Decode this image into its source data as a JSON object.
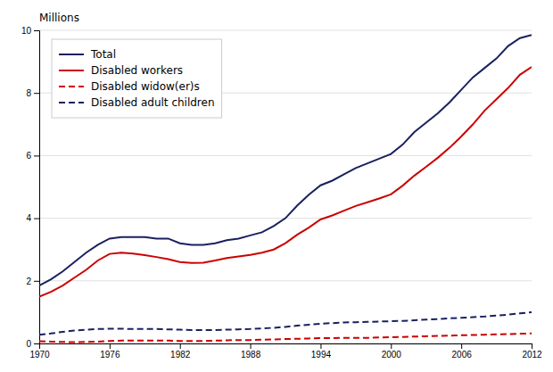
{
  "chart_data": {
    "type": "line",
    "ylabel": "Millions",
    "x": [
      1970,
      1971,
      1972,
      1973,
      1974,
      1975,
      1976,
      1977,
      1978,
      1979,
      1980,
      1981,
      1982,
      1983,
      1984,
      1985,
      1986,
      1987,
      1988,
      1989,
      1990,
      1991,
      1992,
      1993,
      1994,
      1995,
      1996,
      1997,
      1998,
      1999,
      2000,
      2001,
      2002,
      2003,
      2004,
      2005,
      2006,
      2007,
      2008,
      2009,
      2010,
      2011,
      2012
    ],
    "series": [
      {
        "name": "Total",
        "color": "#1a2060",
        "line_style": "solid",
        "values": [
          1.85,
          2.05,
          2.3,
          2.6,
          2.9,
          3.15,
          3.35,
          3.4,
          3.4,
          3.4,
          3.35,
          3.35,
          3.2,
          3.15,
          3.15,
          3.2,
          3.3,
          3.35,
          3.45,
          3.55,
          3.75,
          4.0,
          4.4,
          4.75,
          5.05,
          5.2,
          5.4,
          5.6,
          5.75,
          5.9,
          6.05,
          6.35,
          6.75,
          7.05,
          7.35,
          7.7,
          8.1,
          8.5,
          8.8,
          9.1,
          9.5,
          9.75,
          9.85
        ]
      },
      {
        "name": "Disabled workers",
        "color": "#cc0000",
        "line_style": "solid",
        "values": [
          1.49,
          1.65,
          1.85,
          2.1,
          2.35,
          2.65,
          2.86,
          2.9,
          2.87,
          2.82,
          2.76,
          2.69,
          2.6,
          2.57,
          2.58,
          2.65,
          2.73,
          2.78,
          2.83,
          2.9,
          3.0,
          3.2,
          3.47,
          3.7,
          3.96,
          4.09,
          4.24,
          4.39,
          4.51,
          4.63,
          4.76,
          5.04,
          5.36,
          5.64,
          5.93,
          6.25,
          6.61,
          7.0,
          7.44,
          7.8,
          8.16,
          8.58,
          8.83
        ]
      },
      {
        "name": "Disabled widow(er)s",
        "color": "#cc0000",
        "line_style": "dashed",
        "values": [
          0.07,
          0.06,
          0.05,
          0.04,
          0.05,
          0.06,
          0.08,
          0.09,
          0.09,
          0.09,
          0.09,
          0.09,
          0.08,
          0.08,
          0.08,
          0.09,
          0.1,
          0.11,
          0.11,
          0.12,
          0.13,
          0.14,
          0.15,
          0.16,
          0.17,
          0.17,
          0.18,
          0.18,
          0.18,
          0.19,
          0.2,
          0.21,
          0.22,
          0.23,
          0.24,
          0.25,
          0.26,
          0.27,
          0.28,
          0.29,
          0.3,
          0.31,
          0.32
        ]
      },
      {
        "name": "Disabled adult children",
        "color": "#1a2060",
        "line_style": "dashed",
        "values": [
          0.28,
          0.32,
          0.37,
          0.41,
          0.44,
          0.46,
          0.47,
          0.47,
          0.46,
          0.46,
          0.46,
          0.45,
          0.44,
          0.43,
          0.43,
          0.43,
          0.44,
          0.45,
          0.46,
          0.48,
          0.5,
          0.53,
          0.57,
          0.6,
          0.63,
          0.65,
          0.67,
          0.68,
          0.69,
          0.7,
          0.71,
          0.72,
          0.74,
          0.76,
          0.78,
          0.8,
          0.82,
          0.84,
          0.86,
          0.89,
          0.92,
          0.96,
          1.0
        ]
      }
    ],
    "xlim": [
      1970,
      2012
    ],
    "xticks": [
      1970,
      1976,
      1982,
      1988,
      1994,
      2000,
      2006,
      2012
    ],
    "ylim": [
      0,
      10
    ],
    "yticks": [
      0,
      2,
      4,
      6,
      8,
      10
    ],
    "grid": true,
    "legend": "upper left"
  }
}
